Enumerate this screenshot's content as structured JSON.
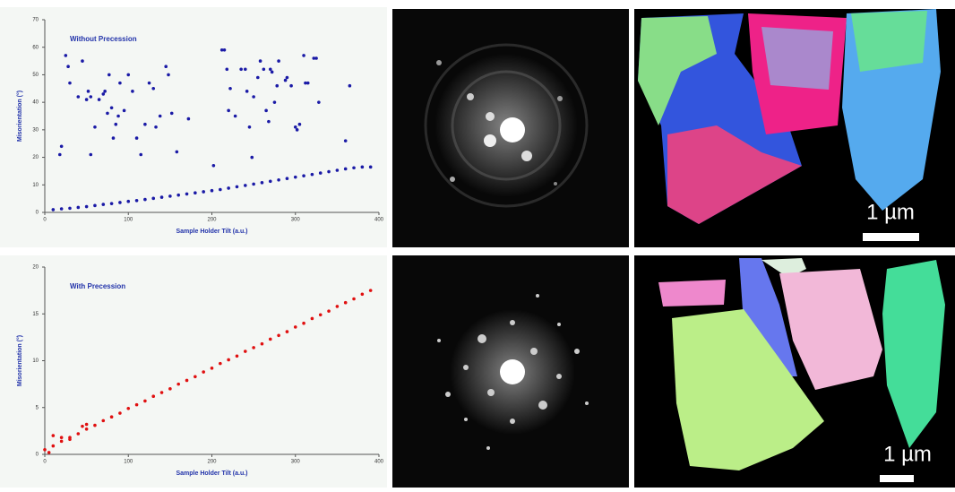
{
  "chart_data": [
    {
      "type": "scatter",
      "title": "Without Precession",
      "x_label": "Sample Holder Tilt (a.u.)",
      "y_label": "Misorientation (°)",
      "xlim": [
        0,
        400
      ],
      "ylim": [
        0,
        70
      ],
      "xticks": [
        0,
        100,
        200,
        300,
        400
      ],
      "yticks": [
        0,
        10,
        20,
        30,
        40,
        50,
        60,
        70
      ],
      "color": "#1a1aa6",
      "x": [
        10,
        20,
        30,
        40,
        50,
        60,
        70,
        80,
        90,
        100,
        110,
        120,
        130,
        140,
        150,
        160,
        170,
        180,
        190,
        200,
        210,
        220,
        230,
        240,
        250,
        260,
        270,
        280,
        290,
        300,
        310,
        320,
        330,
        340,
        350,
        360,
        370,
        380,
        390,
        25,
        28,
        30,
        40,
        45,
        50,
        52,
        55,
        60,
        65,
        70,
        72,
        75,
        77,
        80,
        82,
        85,
        88,
        90,
        95,
        100,
        105,
        110,
        115,
        120,
        125,
        130,
        133,
        138,
        145,
        148,
        152,
        158,
        172,
        202,
        212,
        215,
        218,
        220,
        222,
        228,
        235,
        240,
        242,
        245,
        248,
        250,
        255,
        258,
        262,
        265,
        268,
        270,
        272,
        275,
        278,
        280,
        288,
        290,
        295,
        300,
        302,
        305,
        310,
        312,
        315,
        322,
        325,
        328,
        360,
        365,
        18,
        20,
        55
      ],
      "values": [
        1,
        1.3,
        1.5,
        1.8,
        2.1,
        2.5,
        2.9,
        3.2,
        3.6,
        4,
        4.3,
        4.7,
        5.1,
        5.5,
        5.9,
        6.3,
        6.7,
        7.1,
        7.5,
        7.9,
        8.3,
        8.8,
        9.3,
        9.8,
        10.3,
        10.8,
        11.3,
        11.8,
        12.3,
        12.8,
        13.3,
        13.8,
        14.3,
        14.8,
        15.3,
        15.8,
        16.2,
        16.5,
        16.5,
        57,
        53,
        47,
        42,
        55,
        41,
        44,
        42,
        31,
        41,
        43,
        44,
        36,
        50,
        38,
        27,
        32,
        35,
        47,
        37,
        50,
        44,
        27,
        21,
        32,
        47,
        45,
        31,
        35,
        53,
        50,
        36,
        22,
        34,
        17,
        59,
        59,
        52,
        37,
        45,
        35,
        52,
        52,
        44,
        31,
        20,
        42,
        49,
        55,
        52,
        37,
        33,
        52,
        51,
        40,
        46,
        55,
        48,
        49,
        46,
        31,
        30,
        32,
        57,
        47,
        47,
        56,
        56,
        40,
        26,
        46,
        21,
        24,
        21
      ]
    },
    {
      "type": "scatter",
      "title": "With Precession",
      "x_label": "Sample Holder Tilt (a.u.)",
      "y_label": "Misorientation (°)",
      "xlim": [
        0,
        400
      ],
      "ylim": [
        0,
        20
      ],
      "xticks": [
        0,
        100,
        200,
        300,
        400
      ],
      "yticks": [
        0,
        5,
        10,
        15,
        20
      ],
      "color": "#e01010",
      "x": [
        0,
        10,
        20,
        30,
        40,
        50,
        60,
        70,
        80,
        90,
        100,
        110,
        120,
        130,
        140,
        150,
        160,
        170,
        180,
        190,
        200,
        210,
        220,
        230,
        240,
        250,
        260,
        270,
        280,
        290,
        300,
        310,
        320,
        330,
        340,
        350,
        360,
        370,
        380,
        390,
        5,
        10,
        20,
        30,
        45,
        50
      ],
      "values": [
        0.5,
        0.9,
        1.4,
        1.8,
        2.2,
        2.7,
        3.1,
        3.6,
        4,
        4.4,
        4.9,
        5.3,
        5.7,
        6.2,
        6.6,
        7,
        7.5,
        7.9,
        8.3,
        8.8,
        9.2,
        9.7,
        10.1,
        10.5,
        11,
        11.4,
        11.8,
        12.3,
        12.7,
        13.1,
        13.6,
        14,
        14.5,
        14.9,
        15.3,
        15.8,
        16.2,
        16.6,
        17.1,
        17.5,
        0.2,
        2,
        1.8,
        1.6,
        3,
        3.2
      ]
    }
  ],
  "micrographs": [
    {
      "scale_label": "1 µm"
    },
    {
      "scale_label": "1 µm"
    }
  ]
}
